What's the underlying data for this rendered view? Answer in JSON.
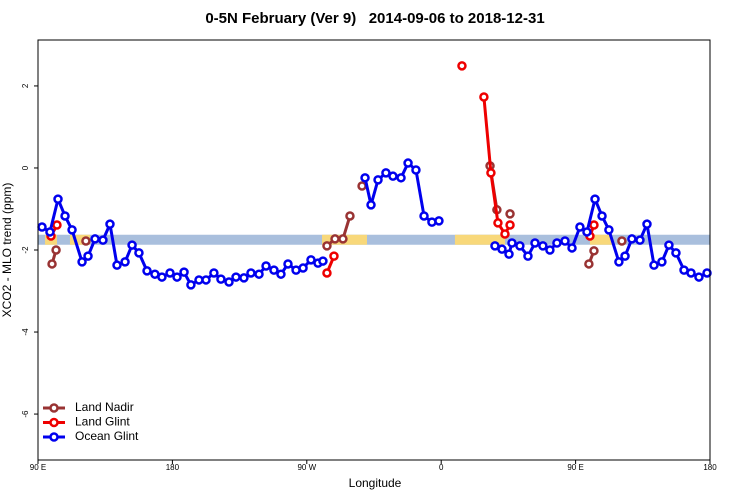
{
  "chart_data": {
    "type": "line",
    "title": "0-5N February (Ver 9)   2014-09-06 to 2018-12-31",
    "x_label": "Longitude",
    "y_label": "XCO2 - MLO trend (ppm)",
    "xlim": [
      90,
      540
    ],
    "ylim": [
      -7.12,
      3.12
    ],
    "xticks": [
      {
        "value": 90,
        "label": "90 E"
      },
      180,
      {
        "value": 270,
        "label": "90 W"
      },
      {
        "value": 360,
        "label": "0"
      },
      {
        "value": 450,
        "label": "90 E"
      },
      {
        "value": 540,
        "label": "180"
      }
    ],
    "yticks": [
      -6,
      -4,
      -2,
      0,
      2
    ],
    "legend": "bottom-left",
    "reference_band": {
      "y": -1.75,
      "color": "#a9bfdd",
      "land_color": "#f8d87a",
      "land_segments": [
        [
          94.7,
          102.7
        ],
        [
          111.4,
          124.8
        ],
        [
          280.2,
          310.3
        ],
        [
          369.2,
          402.7
        ],
        [
          459.6,
          474.4
        ]
      ]
    },
    "series": [
      {
        "name": "Land Nadir",
        "color": "#993333",
        "x": [
          99.4,
          102.1,
          null,
          122.1,
          null,
          283.5,
          288.9,
          294.2,
          298.9,
          null,
          307.0,
          null,
          392.7,
          397.3,
          null,
          406.1,
          null,
          458.9,
          462.3,
          null,
          481.0
        ],
        "values": [
          -2.34,
          -2.0,
          null,
          -1.78,
          null,
          -1.9,
          -1.73,
          -1.73,
          -1.17,
          null,
          -0.44,
          null,
          0.05,
          -1.02,
          null,
          -1.12,
          null,
          -2.34,
          -2.02,
          null,
          -1.78
        ]
      },
      {
        "name": "Land Glint",
        "color": "#ee0000",
        "x": [
          98.7,
          102.7,
          null,
          283.5,
          288.2,
          null,
          373.9,
          null,
          388.6,
          393.3,
          398.0,
          402.7,
          406.1,
          null,
          459.6,
          462.3
        ],
        "values": [
          -1.66,
          -1.39,
          null,
          -2.56,
          -2.15,
          null,
          2.49,
          null,
          1.73,
          -0.12,
          -1.34,
          -1.61,
          -1.39,
          null,
          -1.66,
          -1.39
        ]
      },
      {
        "name": "Ocean Glint",
        "color": "#0000ee",
        "x": [
          92.7,
          98.0,
          103.4,
          108.1,
          112.8,
          119.5,
          123.5,
          128.2,
          133.5,
          138.2,
          142.9,
          148.3,
          153.0,
          157.6,
          163.0,
          168.3,
          173.0,
          178.4,
          183.1,
          187.8,
          192.4,
          197.8,
          202.5,
          207.8,
          212.5,
          217.9,
          222.6,
          227.9,
          232.6,
          238.0,
          242.7,
          248.0,
          252.7,
          257.4,
          262.8,
          267.5,
          272.8,
          277.5,
          280.8,
          null,
          309.0,
          313.0,
          317.7,
          323.0,
          327.7,
          333.1,
          337.8,
          343.1,
          348.5,
          353.8,
          358.5,
          null,
          396.0,
          400.7,
          405.4,
          407.4,
          412.7,
          418.1,
          422.8,
          428.1,
          432.8,
          437.5,
          442.9,
          447.6,
          452.9,
          457.6,
          463.0,
          467.7,
          472.3,
          479.0,
          483.1,
          487.7,
          493.1,
          497.8,
          502.5,
          507.8,
          512.5,
          517.2,
          522.6,
          527.3,
          532.6,
          538.0
        ],
        "values": [
          -1.44,
          -1.56,
          -0.76,
          -1.17,
          -1.51,
          -2.29,
          -2.15,
          -1.73,
          -1.76,
          -1.37,
          -2.37,
          -2.29,
          -1.88,
          -2.07,
          -2.51,
          -2.59,
          -2.66,
          -2.56,
          -2.66,
          -2.54,
          -2.85,
          -2.73,
          -2.73,
          -2.56,
          -2.71,
          -2.78,
          -2.66,
          -2.68,
          -2.56,
          -2.59,
          -2.39,
          -2.49,
          -2.59,
          -2.34,
          -2.49,
          -2.44,
          -2.24,
          -2.32,
          -2.27,
          null,
          -0.24,
          -0.9,
          -0.29,
          -0.12,
          -0.2,
          -0.24,
          0.12,
          -0.05,
          -1.17,
          -1.32,
          -1.29,
          null,
          -1.9,
          -1.98,
          -2.1,
          -1.83,
          -1.9,
          -2.15,
          -1.83,
          -1.9,
          -2.0,
          -1.83,
          -1.78,
          -1.95,
          -1.44,
          -1.56,
          -0.76,
          -1.17,
          -1.51,
          -2.29,
          -2.15,
          -1.73,
          -1.76,
          -1.37,
          -2.37,
          -2.29,
          -1.88,
          -2.07,
          -2.49,
          -2.56,
          -2.66,
          -2.56
        ]
      }
    ]
  }
}
